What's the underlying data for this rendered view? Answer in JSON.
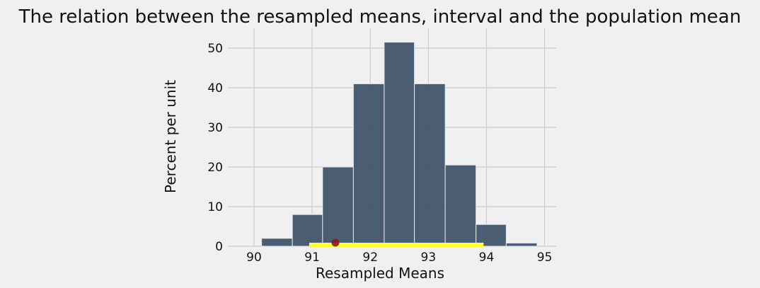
{
  "chart_data": {
    "type": "bar",
    "title": "The relation between the resampled means, interval and the population mean",
    "xlabel": "Resampled Means",
    "ylabel": "Percent per unit",
    "xlim": [
      89.55,
      95.2
    ],
    "ylim": [
      0,
      55
    ],
    "x_ticks": [
      90,
      91,
      92,
      93,
      94,
      95
    ],
    "y_ticks": [
      0,
      10,
      20,
      30,
      40,
      50
    ],
    "grid": true,
    "bin_edges": [
      90.13,
      90.66,
      91.18,
      91.71,
      92.24,
      92.76,
      93.29,
      93.82,
      94.34,
      94.87
    ],
    "values": [
      2,
      8,
      20,
      41,
      51.5,
      41,
      20.5,
      5.5,
      0.8
    ],
    "bar_color": "#3d5068",
    "interval": [
      90.95,
      93.95
    ],
    "interval_color": "#ffff33",
    "population_mean": 91.4,
    "population_mean_color": "#8b1a1a"
  }
}
